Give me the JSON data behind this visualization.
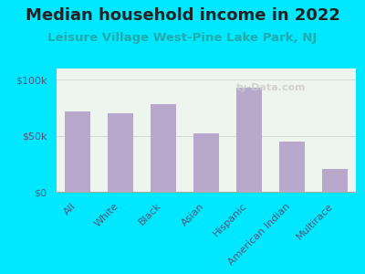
{
  "title": "Median household income in 2022",
  "subtitle": "Leisure Village West-Pine Lake Park, NJ",
  "categories": [
    "All",
    "White",
    "Black",
    "Asian",
    "Hispanic",
    "American Indian",
    "Multirace"
  ],
  "values": [
    72000,
    70000,
    78000,
    52000,
    93000,
    45000,
    20000
  ],
  "bar_color": "#b8a8cc",
  "background_outer": "#00e8ff",
  "background_inner": "#eef5ee",
  "ylim": [
    0,
    110000
  ],
  "yticks": [
    0,
    50000,
    100000
  ],
  "ytick_labels": [
    "$0",
    "$50k",
    "$100k"
  ],
  "title_fontsize": 13,
  "subtitle_fontsize": 9.5,
  "tick_fontsize": 8,
  "watermark": "ty-Data.com",
  "title_color": "#222222",
  "subtitle_color": "#22aaaa",
  "tick_color": "#555577"
}
